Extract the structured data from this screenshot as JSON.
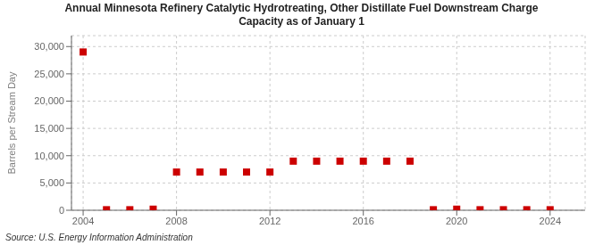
{
  "chart_data": {
    "type": "scatter",
    "title": "Annual Minnesota Refinery Catalytic Hydrotreating, Other Distillate Fuel Downstream Charge\nCapacity as of January 1",
    "ylabel": "Barrels per Stream Day",
    "annotations": [
      "Source: U.S. Energy Information Administration"
    ],
    "x": [
      2004,
      2005,
      2006,
      2007,
      2008,
      2009,
      2010,
      2011,
      2012,
      2013,
      2014,
      2015,
      2016,
      2017,
      2018,
      2019,
      2020,
      2021,
      2022,
      2023,
      2024
    ],
    "values": [
      29000,
      100,
      100,
      200,
      7000,
      7000,
      7000,
      7000,
      7000,
      9000,
      9000,
      9000,
      9000,
      9000,
      9000,
      100,
      200,
      100,
      100,
      100,
      100
    ],
    "color": "#cc0000",
    "marker": "square",
    "xlim": [
      2003.5,
      2025.5
    ],
    "ylim": [
      0,
      32000
    ],
    "xticks": [
      2004,
      2008,
      2012,
      2016,
      2020,
      2024
    ],
    "yticks": [
      0,
      {
        "value": 5000,
        "label": "5,000"
      },
      {
        "value": 10000,
        "label": "10,000"
      },
      {
        "value": 15000,
        "label": "15,000"
      },
      {
        "value": 20000,
        "label": "20,000"
      },
      {
        "value": 25000,
        "label": "25,000"
      },
      {
        "value": 30000,
        "label": "30,000"
      }
    ],
    "grid": true
  }
}
